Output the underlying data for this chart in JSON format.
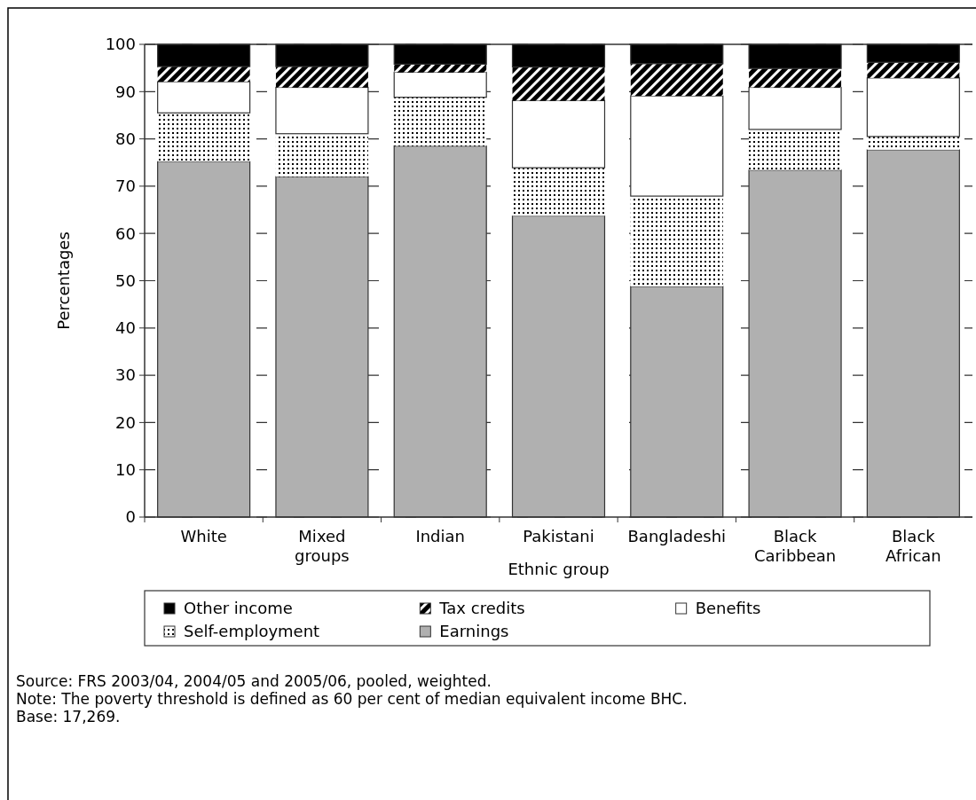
{
  "chart_data": {
    "type": "bar",
    "stacked": true,
    "xlabel": "Ethnic group",
    "ylabel": "Percentages",
    "categories": [
      "White",
      "Mixed groups",
      "Indian",
      "Pakistani",
      "Bangladeshi",
      "Black Caribbean",
      "Black African"
    ],
    "series": [
      {
        "name": "Earnings",
        "color": "#b0b0b0",
        "values": [
          75.2,
          72.0,
          78.5,
          63.7,
          48.8,
          73.4,
          77.7
        ]
      },
      {
        "name": "Self-employment",
        "color": "#ffffff",
        "values": [
          10.3,
          9.1,
          10.3,
          10.2,
          19.1,
          8.6,
          2.8
        ]
      },
      {
        "name": "Benefits",
        "color": "#ffffff",
        "values": [
          6.6,
          9.8,
          5.3,
          14.2,
          21.2,
          8.9,
          12.4
        ]
      },
      {
        "name": "Tax credits",
        "color": "#000000",
        "values": [
          3.2,
          4.4,
          1.7,
          7.1,
          6.8,
          4.0,
          3.3
        ]
      },
      {
        "name": "Other income",
        "color": "#000000",
        "values": [
          4.7,
          4.7,
          4.2,
          4.8,
          4.1,
          5.1,
          3.8
        ]
      }
    ],
    "ylim": [
      0,
      100
    ],
    "yticks": [
      0,
      10,
      20,
      30,
      40,
      50,
      60,
      70,
      80,
      90,
      100
    ],
    "grid": "y",
    "legend": "bottom",
    "annotations": [
      "Source: FRS 2003/04, 2004/05 and 2005/06, pooled, weighted.",
      "Note: The poverty threshold is defined as 60 per cent of median equivalent income BHC.",
      "Base: 17,269."
    ]
  }
}
